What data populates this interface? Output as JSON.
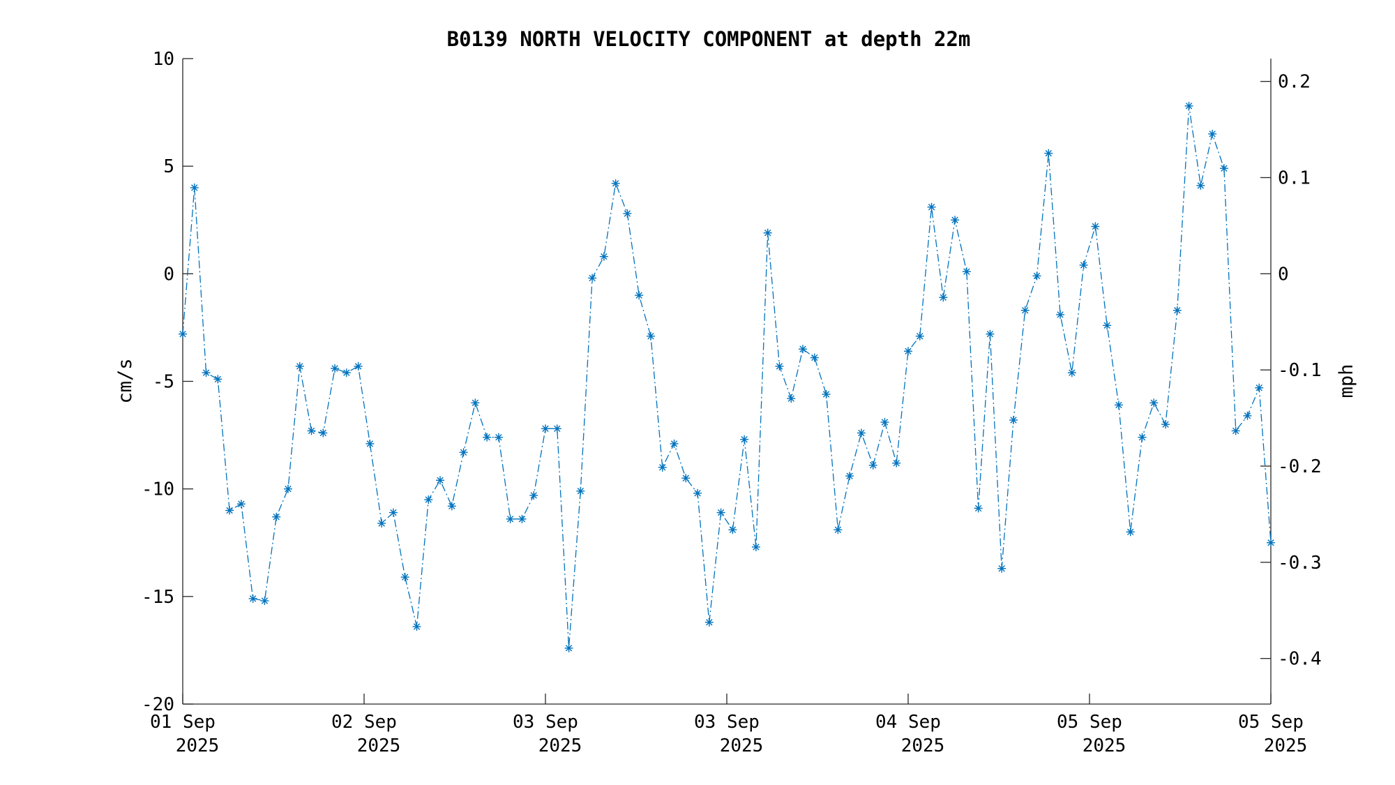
{
  "chart_data": {
    "type": "line",
    "title": "B0139 NORTH VELOCITY COMPONENT at depth 22m",
    "ylabel": "cm/s",
    "y2label": "mph",
    "ylim": [
      -20,
      10
    ],
    "y2lim": [
      -0.4474,
      0.2237
    ],
    "yticks": [
      "10",
      "5",
      "0",
      "-5",
      "-10",
      "-15",
      "-20"
    ],
    "y2ticks": [
      "0.2",
      "0.1",
      "0",
      "-0.1",
      "-0.2",
      "-0.3",
      "-0.4"
    ],
    "xticks": [
      {
        "day": "01 Sep",
        "year": "2025"
      },
      {
        "day": "02 Sep",
        "year": "2025"
      },
      {
        "day": "03 Sep",
        "year": "2025"
      },
      {
        "day": "03 Sep",
        "year": "2025"
      },
      {
        "day": "04 Sep",
        "year": "2025"
      },
      {
        "day": "05 Sep",
        "year": "2025"
      },
      {
        "day": "05 Sep",
        "year": "2025"
      }
    ],
    "marker": "asterisk",
    "line_style": "dash-dot",
    "grid": false,
    "color": "#0072BD",
    "series": [
      {
        "values": [
          -2.8,
          4.0,
          -4.6,
          -4.9,
          -11.0,
          -10.7,
          -15.1,
          -15.2,
          -11.3,
          -10.0,
          -4.3,
          -7.3,
          -7.4,
          -4.4,
          -4.6,
          -4.3,
          -7.9,
          -11.6,
          -11.1,
          -14.1,
          -16.4,
          -10.5,
          -9.6,
          -10.8,
          -8.3,
          -6.0,
          -7.6,
          -7.6,
          -11.4,
          -11.4,
          -10.3,
          -7.2,
          -7.2,
          -17.4,
          -10.1,
          -0.2,
          0.8,
          4.2,
          2.8,
          -1.0,
          -2.9,
          -9.0,
          -7.9,
          -9.5,
          -10.2,
          -16.2,
          -11.1,
          -11.9,
          -7.7,
          -12.7,
          1.9,
          -4.3,
          -5.8,
          -3.5,
          -3.9,
          -5.6,
          -11.9,
          -9.4,
          -7.4,
          -8.9,
          -6.9,
          -8.8,
          -3.6,
          -2.9,
          3.1,
          -1.1,
          2.5,
          0.1,
          -10.9,
          -2.8,
          -13.7,
          -6.8,
          -1.7,
          -0.1,
          5.6,
          -1.9,
          -4.6,
          0.4,
          2.2,
          -2.4,
          -6.1,
          -12.0,
          -7.6,
          -6.0,
          -7.0,
          -1.7,
          7.8,
          4.1,
          6.5,
          4.9,
          -7.3,
          -6.6,
          -5.3,
          -12.5
        ]
      }
    ]
  }
}
